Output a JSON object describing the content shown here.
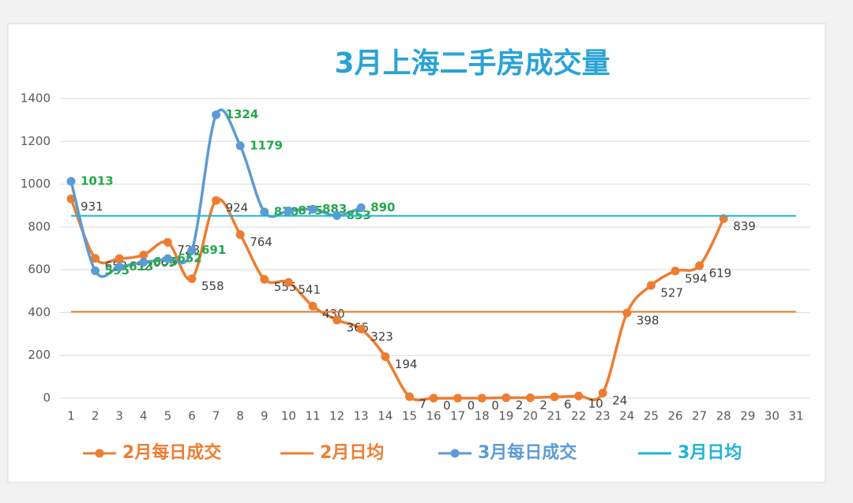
{
  "chart_data": {
    "type": "line",
    "title": "3月上海二手房成交量",
    "categories": [
      "1",
      "2",
      "3",
      "4",
      "5",
      "6",
      "7",
      "8",
      "9",
      "10",
      "11",
      "12",
      "13",
      "14",
      "15",
      "16",
      "17",
      "18",
      "19",
      "20",
      "21",
      "22",
      "23",
      "24",
      "25",
      "26",
      "27",
      "28",
      "29",
      "30",
      "31"
    ],
    "series": [
      {
        "name": "2月每日成交",
        "color": "#ed7d31",
        "markers": true,
        "label_color": "#404040",
        "values": [
          931,
          653,
          652,
          669,
          728,
          558,
          924,
          764,
          555,
          541,
          430,
          365,
          323,
          194,
          7,
          0,
          0,
          0,
          2,
          2,
          6,
          10,
          24,
          398,
          527,
          594,
          619,
          839,
          null,
          null,
          null
        ]
      },
      {
        "name": "2月日均",
        "color": "#ed7d31",
        "markers": false,
        "values": [
          404,
          404,
          404,
          404,
          404,
          404,
          404,
          404,
          404,
          404,
          404,
          404,
          404,
          404,
          404,
          404,
          404,
          404,
          404,
          404,
          404,
          404,
          404,
          404,
          404,
          404,
          404,
          404,
          404,
          404,
          404
        ]
      },
      {
        "name": "3月每日成交",
        "color": "#5b9bd5",
        "markers": true,
        "label_color": "#22a84a",
        "values": [
          1013,
          595,
          613,
          635,
          652,
          691,
          1324,
          1179,
          870,
          875,
          883,
          853,
          890,
          null,
          null,
          null,
          null,
          null,
          null,
          null,
          null,
          null,
          null,
          null,
          null,
          null,
          null,
          null,
          null,
          null,
          null
        ]
      },
      {
        "name": "3月日均",
        "color": "#1fb5d6",
        "markers": false,
        "values": [
          852,
          852,
          852,
          852,
          852,
          852,
          852,
          852,
          852,
          852,
          852,
          852,
          852,
          852,
          852,
          852,
          852,
          852,
          852,
          852,
          852,
          852,
          852,
          852,
          852,
          852,
          852,
          852,
          852,
          852,
          852
        ]
      }
    ],
    "ylim": [
      0,
      1400
    ],
    "yticks": [
      0,
      200,
      400,
      600,
      800,
      1000,
      1200,
      1400
    ],
    "grid": true,
    "legend": "bottom"
  }
}
